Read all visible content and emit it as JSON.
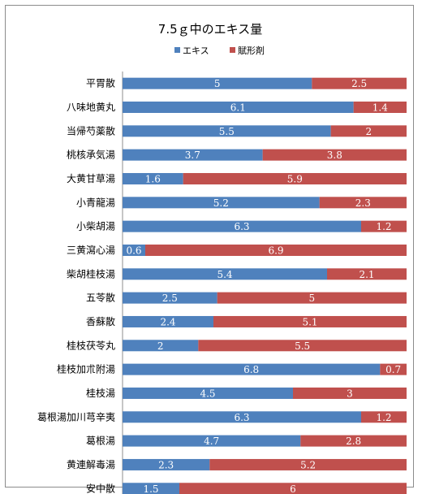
{
  "chart_data": {
    "type": "bar",
    "orientation": "horizontal",
    "stacked": true,
    "title": "7.5ｇ中のエキス量",
    "categories": [
      "平胃散",
      "八味地黄丸",
      "当帰芍薬散",
      "桃核承気湯",
      "大黄甘草湯",
      "小青龍湯",
      "小柴胡湯",
      "三黄瀉心湯",
      "柴胡桂枝湯",
      "五苓散",
      "香蘇散",
      "桂枝茯苓丸",
      "桂枝加朮附湯",
      "桂枝湯",
      "葛根湯加川芎辛夷",
      "葛根湯",
      "黄連解毒湯",
      "安中散"
    ],
    "series": [
      {
        "name": "エキス",
        "color": "#4f81bd",
        "values": [
          5,
          6.1,
          5.5,
          3.7,
          1.6,
          5.2,
          6.3,
          0.6,
          5.4,
          2.5,
          2.4,
          2,
          6.8,
          4.5,
          6.3,
          4.7,
          2.3,
          1.5
        ]
      },
      {
        "name": "賦形剤",
        "color": "#c0504d",
        "values": [
          2.5,
          1.4,
          2,
          3.8,
          5.9,
          2.3,
          1.2,
          6.9,
          2.1,
          5,
          5.1,
          5.5,
          0.7,
          3,
          1.2,
          2.8,
          5.2,
          6
        ]
      }
    ],
    "xlim": [
      0,
      7.5
    ],
    "legend_position": "top",
    "grid": false
  }
}
